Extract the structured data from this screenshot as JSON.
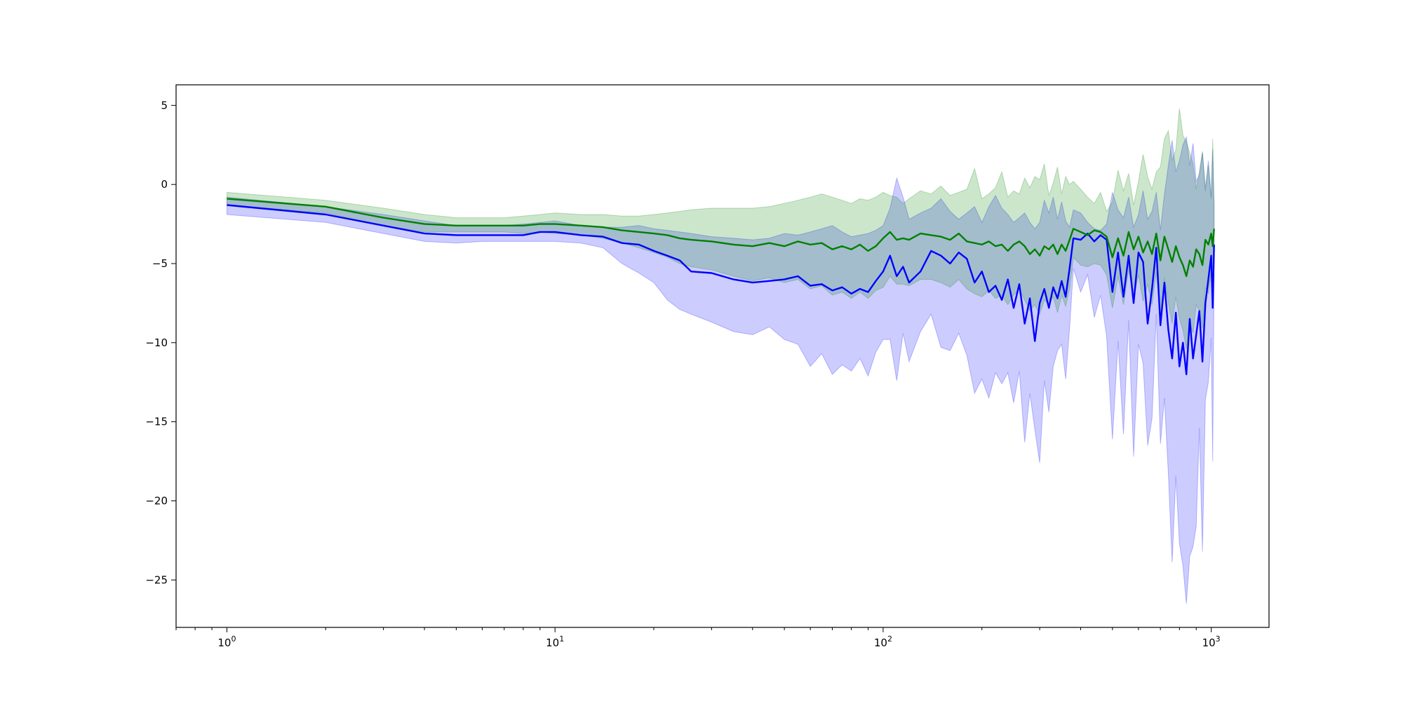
{
  "chart_data": {
    "type": "line",
    "title": "",
    "xlabel": "",
    "ylabel": "",
    "xscale": "log",
    "xlim": [
      0.7,
      1500
    ],
    "ylim": [
      -28,
      6.3
    ],
    "grid": false,
    "x_ticks": [
      {
        "value": 1,
        "base": "10",
        "exp": "0"
      },
      {
        "value": 10,
        "base": "10",
        "exp": "1"
      },
      {
        "value": 100,
        "base": "10",
        "exp": "2"
      },
      {
        "value": 1000,
        "base": "10",
        "exp": "3"
      }
    ],
    "y_ticks": [
      {
        "value": 5,
        "label": "5"
      },
      {
        "value": 0,
        "label": "0"
      },
      {
        "value": -5,
        "label": "−5"
      },
      {
        "value": -10,
        "label": "−10"
      },
      {
        "value": -15,
        "label": "−15"
      },
      {
        "value": -20,
        "label": "−20"
      },
      {
        "value": -25,
        "label": "−25"
      }
    ],
    "series": [
      {
        "color": "#0000ff",
        "fill_color": "#0000ff",
        "fill_opacity": 0.2,
        "x": [
          1,
          2,
          3,
          4,
          5,
          6,
          7,
          8,
          9,
          10,
          12,
          14,
          16,
          18,
          20,
          22,
          24,
          26,
          30,
          35,
          40,
          45,
          50,
          55,
          60,
          65,
          70,
          75,
          80,
          85,
          90,
          95,
          100,
          105,
          110,
          115,
          120,
          130,
          140,
          150,
          160,
          170,
          180,
          190,
          200,
          210,
          220,
          230,
          240,
          250,
          260,
          270,
          280,
          290,
          300,
          310,
          320,
          330,
          340,
          350,
          360,
          370,
          380,
          400,
          420,
          440,
          460,
          480,
          500,
          520,
          540,
          560,
          580,
          600,
          620,
          640,
          660,
          680,
          700,
          720,
          740,
          760,
          780,
          800,
          820,
          840,
          860,
          880,
          900,
          920,
          940,
          960,
          980,
          1000,
          1010,
          1020
        ],
        "y": [
          -1.3,
          -1.9,
          -2.6,
          -3.1,
          -3.2,
          -3.2,
          -3.2,
          -3.2,
          -3.0,
          -3.0,
          -3.2,
          -3.3,
          -3.7,
          -3.8,
          -4.2,
          -4.5,
          -4.8,
          -5.5,
          -5.6,
          -6.0,
          -6.2,
          -6.1,
          -6.0,
          -5.8,
          -6.4,
          -6.3,
          -6.7,
          -6.5,
          -6.9,
          -6.6,
          -6.8,
          -6.1,
          -5.5,
          -4.5,
          -5.8,
          -5.2,
          -6.2,
          -5.5,
          -4.2,
          -4.5,
          -5.0,
          -4.3,
          -4.7,
          -6.2,
          -5.5,
          -6.8,
          -6.4,
          -7.3,
          -6.0,
          -7.8,
          -6.3,
          -8.8,
          -7.2,
          -9.9,
          -7.5,
          -6.6,
          -7.8,
          -6.5,
          -7.2,
          -6.1,
          -7.1,
          -5.3,
          -3.4,
          -3.5,
          -3.1,
          -3.6,
          -3.2,
          -3.5,
          -6.8,
          -4.3,
          -7.1,
          -4.5,
          -7.5,
          -4.3,
          -4.9,
          -8.8,
          -6.6,
          -4.0,
          -8.9,
          -6.2,
          -9.2,
          -11.0,
          -8.1,
          -11.5,
          -10.0,
          -12.0,
          -8.5,
          -11.0,
          -9.5,
          -8.0,
          -11.2,
          -7.5,
          -6.0,
          -4.5,
          -7.8,
          -3.8
        ],
        "upper": [
          -0.8,
          -1.4,
          -1.9,
          -2.3,
          -2.6,
          -2.6,
          -2.6,
          -2.5,
          -2.4,
          -2.3,
          -2.6,
          -2.7,
          -2.7,
          -2.6,
          -2.8,
          -2.9,
          -3.0,
          -3.1,
          -3.3,
          -3.4,
          -3.5,
          -3.4,
          -3.1,
          -3.2,
          -3.0,
          -2.8,
          -2.6,
          -3.0,
          -3.3,
          -3.2,
          -3.1,
          -2.9,
          -2.6,
          -1.5,
          0.4,
          -0.8,
          -2.2,
          -1.8,
          -1.5,
          -0.9,
          -1.7,
          -2.2,
          -1.8,
          -1.4,
          -2.4,
          -1.4,
          -0.7,
          -1.5,
          -1.9,
          -2.4,
          -2.1,
          -1.8,
          -2.4,
          -2.8,
          -2.4,
          -1.0,
          -1.8,
          -0.8,
          -2.2,
          -1.1,
          -2.3,
          -2.7,
          -1.6,
          -1.8,
          -2.4,
          -2.8,
          -2.9,
          -2.5,
          -0.5,
          -1.6,
          -2.1,
          -0.8,
          -2.7,
          -1.9,
          -0.4,
          -2.2,
          -1.7,
          -0.5,
          -2.9,
          -0.6,
          1.2,
          2.8,
          0.8,
          1.5,
          2.5,
          3.0,
          1.2,
          2.6,
          0.2,
          0.6,
          2.0,
          -0.4,
          1.5,
          -0.8,
          2.2,
          -1.5
        ],
        "lower": [
          -1.9,
          -2.4,
          -3.1,
          -3.6,
          -3.7,
          -3.6,
          -3.6,
          -3.6,
          -3.6,
          -3.6,
          -3.7,
          -4.0,
          -5.0,
          -5.6,
          -6.2,
          -7.3,
          -7.9,
          -8.2,
          -8.7,
          -9.3,
          -9.5,
          -9.0,
          -9.8,
          -10.1,
          -11.5,
          -10.7,
          -12.0,
          -11.4,
          -11.8,
          -11.0,
          -12.1,
          -10.6,
          -9.8,
          -9.8,
          -12.4,
          -9.4,
          -11.2,
          -9.3,
          -8.2,
          -10.3,
          -10.5,
          -9.4,
          -10.8,
          -13.2,
          -12.3,
          -13.5,
          -11.9,
          -12.6,
          -11.9,
          -13.8,
          -11.8,
          -16.3,
          -13.2,
          -15.5,
          -17.6,
          -12.4,
          -14.4,
          -11.5,
          -10.5,
          -10.1,
          -12.3,
          -9.1,
          -5.3,
          -6.8,
          -5.7,
          -8.4,
          -7.0,
          -9.6,
          -16.1,
          -9.9,
          -15.8,
          -8.6,
          -17.2,
          -10.1,
          -11.3,
          -16.5,
          -14.8,
          -8.2,
          -16.4,
          -13.5,
          -18.3,
          -23.9,
          -18.4,
          -22.7,
          -24.1,
          -26.5,
          -23.5,
          -22.9,
          -21.6,
          -15.4,
          -23.2,
          -13.6,
          -12.5,
          -9.7,
          -17.5,
          -6.0
        ]
      },
      {
        "color": "#008000",
        "fill_color": "#008000",
        "fill_opacity": 0.2,
        "x": [
          1,
          2,
          3,
          4,
          5,
          6,
          7,
          8,
          9,
          10,
          12,
          14,
          16,
          18,
          20,
          22,
          24,
          26,
          30,
          35,
          40,
          45,
          50,
          55,
          60,
          65,
          70,
          75,
          80,
          85,
          90,
          95,
          100,
          105,
          110,
          115,
          120,
          130,
          140,
          150,
          160,
          170,
          180,
          190,
          200,
          210,
          220,
          230,
          240,
          250,
          260,
          270,
          280,
          290,
          300,
          310,
          320,
          330,
          340,
          350,
          360,
          370,
          380,
          400,
          420,
          440,
          460,
          480,
          500,
          520,
          540,
          560,
          580,
          600,
          620,
          640,
          660,
          680,
          700,
          720,
          740,
          760,
          780,
          800,
          820,
          840,
          860,
          880,
          900,
          920,
          940,
          960,
          980,
          1000,
          1010,
          1020
        ],
        "y": [
          -0.9,
          -1.4,
          -2.1,
          -2.5,
          -2.6,
          -2.6,
          -2.6,
          -2.6,
          -2.5,
          -2.5,
          -2.6,
          -2.7,
          -2.9,
          -3.0,
          -3.1,
          -3.2,
          -3.4,
          -3.5,
          -3.6,
          -3.8,
          -3.9,
          -3.7,
          -3.9,
          -3.6,
          -3.8,
          -3.7,
          -4.1,
          -3.9,
          -4.1,
          -3.8,
          -4.2,
          -3.9,
          -3.4,
          -3.0,
          -3.5,
          -3.4,
          -3.5,
          -3.1,
          -3.2,
          -3.3,
          -3.5,
          -3.1,
          -3.6,
          -3.7,
          -3.8,
          -3.6,
          -3.9,
          -3.8,
          -4.2,
          -3.8,
          -3.6,
          -3.9,
          -4.4,
          -4.1,
          -4.5,
          -3.9,
          -4.1,
          -3.8,
          -4.4,
          -3.8,
          -4.2,
          -3.5,
          -2.8,
          -3.0,
          -3.2,
          -2.9,
          -3.0,
          -3.3,
          -4.6,
          -3.4,
          -4.5,
          -3.0,
          -4.1,
          -3.3,
          -4.3,
          -3.6,
          -4.4,
          -3.1,
          -4.8,
          -3.3,
          -4.1,
          -4.9,
          -3.9,
          -4.6,
          -5.1,
          -5.8,
          -4.8,
          -5.2,
          -4.1,
          -4.4,
          -5.1,
          -3.5,
          -3.8,
          -3.1,
          -3.9,
          -2.8
        ],
        "upper": [
          -0.5,
          -1.0,
          -1.5,
          -1.9,
          -2.1,
          -2.1,
          -2.1,
          -2.0,
          -1.9,
          -1.8,
          -1.9,
          -1.9,
          -2.0,
          -2.0,
          -1.9,
          -1.8,
          -1.7,
          -1.6,
          -1.5,
          -1.5,
          -1.5,
          -1.4,
          -1.2,
          -1.0,
          -0.8,
          -0.6,
          -0.8,
          -1.0,
          -1.2,
          -0.9,
          -1.0,
          -0.8,
          -0.5,
          -0.7,
          -0.8,
          -1.2,
          -0.9,
          -0.4,
          -0.6,
          -0.1,
          -0.7,
          -0.5,
          -0.3,
          1.0,
          -0.9,
          -0.6,
          -0.2,
          0.8,
          -0.8,
          -0.4,
          -0.6,
          0.4,
          -0.2,
          0.5,
          0.3,
          1.3,
          -0.7,
          0.1,
          1.1,
          -0.6,
          0.5,
          0.0,
          0.2,
          -0.3,
          -0.8,
          -1.2,
          -0.5,
          -1.7,
          -1.1,
          0.9,
          -0.4,
          0.7,
          -1.3,
          0.2,
          1.9,
          0.5,
          -0.3,
          0.8,
          1.1,
          2.9,
          3.4,
          1.5,
          2.2,
          4.8,
          3.1,
          2.7,
          2.0,
          1.3,
          -0.3,
          0.8,
          2.1,
          -0.2,
          1.2,
          -0.9,
          2.9,
          -1.2
        ],
        "lower": [
          -1.3,
          -1.8,
          -2.6,
          -3.0,
          -3.0,
          -3.0,
          -3.0,
          -3.1,
          -3.0,
          -3.1,
          -3.2,
          -3.4,
          -3.7,
          -4.0,
          -4.3,
          -4.6,
          -5.0,
          -5.2,
          -5.4,
          -5.8,
          -6.1,
          -5.9,
          -6.2,
          -6.0,
          -6.6,
          -6.4,
          -7.0,
          -6.8,
          -7.2,
          -6.8,
          -7.2,
          -6.7,
          -6.5,
          -5.8,
          -6.3,
          -6.3,
          -6.4,
          -6.0,
          -6.0,
          -6.2,
          -6.5,
          -6.0,
          -6.6,
          -6.9,
          -7.1,
          -6.7,
          -7.2,
          -7.0,
          -7.6,
          -7.0,
          -6.6,
          -7.3,
          -8.0,
          -7.6,
          -8.2,
          -7.3,
          -7.6,
          -7.1,
          -8.1,
          -7.0,
          -7.7,
          -6.6,
          -4.6,
          -5.1,
          -5.2,
          -5.0,
          -5.1,
          -5.7,
          -7.8,
          -5.8,
          -7.6,
          -5.4,
          -7.2,
          -5.7,
          -7.4,
          -6.3,
          -7.6,
          -5.5,
          -8.3,
          -5.9,
          -7.5,
          -8.8,
          -7.1,
          -8.5,
          -9.2,
          -10.4,
          -8.7,
          -9.4,
          -7.6,
          -8.0,
          -9.1,
          -6.5,
          -6.9,
          -5.6,
          -7.2,
          -5.0
        ]
      }
    ]
  }
}
